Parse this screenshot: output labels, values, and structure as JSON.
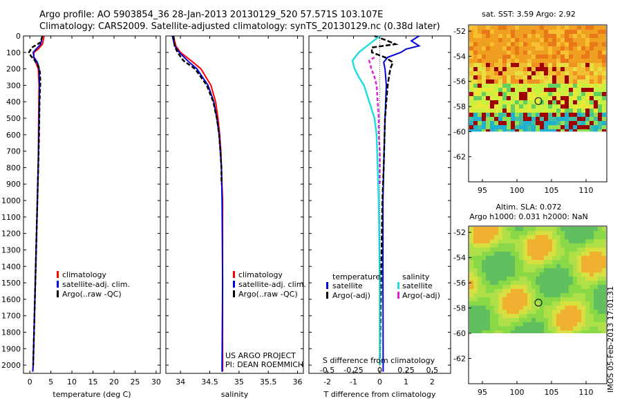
{
  "header": {
    "line1": "Argo profile: AO 5903854_36 28-Jan-2013 20130129_520 57.571S 103.107E",
    "line2": "Climatology: CARS2009. Satellite-adjusted climatology: synTS_20130129.nc (0.38d later)"
  },
  "colors": {
    "climatology": "#ff0000",
    "satellite": "#0000dd",
    "argo": "#000000",
    "satellite_s": "#22dddd",
    "argo_s": "#dd22dd"
  },
  "depth_axis": {
    "ticks": [
      "0",
      "100",
      "200",
      "300",
      "400",
      "500",
      "600",
      "700",
      "800",
      "900",
      "1000",
      "1100",
      "1200",
      "1300",
      "1400",
      "1500",
      "1600",
      "1700",
      "1800",
      "1900",
      "2000"
    ],
    "min": 0,
    "max": 2050
  },
  "chart_data": [
    {
      "type": "line",
      "name": "temperature-profile",
      "xlabel": "temperature (deg C)",
      "ylabel": "",
      "xlim": [
        -1.5,
        31
      ],
      "ylim": [
        2050,
        0
      ],
      "xticks": [
        "0",
        "5",
        "10",
        "15",
        "20",
        "25",
        "30"
      ],
      "legend": [
        "climatology",
        "satellite-adj. clim.",
        "Argo(..raw -QC)"
      ],
      "series": [
        {
          "name": "climatology",
          "depth": [
            0,
            50,
            80,
            100,
            130,
            160,
            200,
            300,
            500,
            800,
            1000,
            1500,
            2000,
            2040
          ],
          "values": [
            3.4,
            3.0,
            2.0,
            1.0,
            0.9,
            1.4,
            2.0,
            2.2,
            2.1,
            2.0,
            1.8,
            1.3,
            0.8,
            0.7
          ]
        },
        {
          "name": "satellite-adj. clim.",
          "depth": [
            0,
            50,
            80,
            100,
            130,
            160,
            200,
            300,
            500,
            800,
            1000,
            1500,
            2000,
            2040
          ],
          "values": [
            3.0,
            2.6,
            1.5,
            0.8,
            1.0,
            1.8,
            2.2,
            2.3,
            2.2,
            2.0,
            1.8,
            1.3,
            0.8,
            0.7
          ]
        },
        {
          "name": "Argo(..raw -QC)",
          "depth": [
            0,
            40,
            70,
            100,
            120,
            150,
            180,
            220,
            280,
            400,
            600,
            800,
            1000,
            1500,
            2000
          ],
          "values": [
            3.0,
            2.5,
            0.5,
            -0.2,
            0.2,
            1.2,
            2.0,
            2.4,
            2.5,
            2.3,
            2.2,
            2.0,
            1.8,
            1.3,
            0.8
          ]
        }
      ]
    },
    {
      "type": "line",
      "name": "salinity-profile",
      "xlabel": "salinity",
      "ylabel": "",
      "xlim": [
        33.75,
        36.1
      ],
      "ylim": [
        2050,
        0
      ],
      "xticks": [
        "34",
        "34.5",
        "35",
        "35.5",
        "36"
      ],
      "legend": [
        "climatology",
        "satellite-adj. clim.",
        "Argo(..raw -QC)"
      ],
      "annotation": [
        "US ARGO PROJECT",
        "PI: DEAN ROEMMICH"
      ],
      "series": [
        {
          "name": "climatology",
          "depth": [
            0,
            60,
            100,
            150,
            200,
            300,
            400,
            500,
            600,
            700,
            800,
            1000,
            1500,
            2000,
            2040
          ],
          "values": [
            33.88,
            33.92,
            34.0,
            34.18,
            34.35,
            34.52,
            34.6,
            34.64,
            34.67,
            34.69,
            34.7,
            34.72,
            34.72,
            34.72,
            34.72
          ]
        },
        {
          "name": "satellite-adj. clim.",
          "depth": [
            0,
            60,
            100,
            150,
            200,
            300,
            400,
            500,
            600,
            700,
            800,
            1000,
            1500,
            2000,
            2040
          ],
          "values": [
            33.86,
            33.9,
            33.98,
            34.12,
            34.28,
            34.47,
            34.57,
            34.62,
            34.66,
            34.68,
            34.7,
            34.71,
            34.72,
            34.71,
            34.71
          ]
        },
        {
          "name": "Argo(..raw -QC)",
          "depth": [
            0,
            60,
            100,
            150,
            200,
            300,
            400,
            500,
            600,
            700,
            800,
            900
          ],
          "values": [
            33.88,
            33.9,
            33.95,
            34.05,
            34.25,
            34.45,
            34.56,
            34.62,
            34.66,
            34.68,
            34.7,
            34.7
          ]
        }
      ]
    },
    {
      "type": "line",
      "name": "difference-profile",
      "xlabel": "T difference from climatology",
      "x2label": "S difference from climatology",
      "ylabel": "",
      "xlim": [
        -2.7,
        2.7
      ],
      "ylim": [
        2050,
        0
      ],
      "xticks": [
        "-2",
        "-1",
        "0",
        "1",
        "2"
      ],
      "x2ticks": [
        "-0.5",
        "-0.25",
        "0",
        "0.25",
        "0.5"
      ],
      "legend_temperature": {
        "title": "temperature",
        "items": [
          "satellite",
          "Argo(-adj)"
        ]
      },
      "legend_salinity": {
        "title": "salinity",
        "items": [
          "satellite",
          "Argo(-adj)"
        ]
      },
      "series": [
        {
          "name": "temperature satellite",
          "depth": [
            0,
            30,
            60,
            80,
            100,
            130,
            160,
            200,
            300,
            500,
            800,
            1000,
            1500,
            2000,
            2040
          ],
          "values": [
            1.5,
            1.2,
            1.5,
            1.0,
            0.8,
            0.3,
            0.15,
            0.2,
            0.25,
            0.2,
            0.15,
            0.12,
            0.12,
            0.13,
            0.13
          ]
        },
        {
          "name": "temperature Argo(-adj)",
          "depth": [
            0,
            30,
            50,
            70,
            100,
            130,
            160,
            200,
            300,
            500,
            800,
            1000,
            1500,
            2000
          ],
          "values": [
            -0.2,
            0.3,
            0.6,
            -0.3,
            -0.3,
            0.2,
            0.5,
            0.4,
            0.3,
            0.2,
            0.15,
            0.1,
            0.05,
            0.0
          ]
        },
        {
          "name": "salinity satellite",
          "depth": [
            0,
            100,
            150,
            200,
            250,
            300,
            400,
            500,
            600,
            800,
            1000,
            1500,
            2000
          ],
          "values": [
            0.0,
            -0.2,
            -0.26,
            -0.24,
            -0.2,
            -0.15,
            -0.1,
            -0.05,
            -0.03,
            -0.02,
            -0.01,
            0.0,
            0.0
          ]
        },
        {
          "name": "salinity Argo(-adj)",
          "depth": [
            130,
            150,
            200,
            250,
            300,
            400,
            500,
            600,
            700,
            800,
            900
          ],
          "values": [
            -0.05,
            -0.1,
            -0.08,
            -0.05,
            -0.03,
            -0.02,
            -0.01,
            -0.01,
            0.0,
            0.0,
            0.0
          ]
        }
      ]
    }
  ],
  "sst_map": {
    "title": "sat. SST: 3.59 Argo: 2.92",
    "xticks": [
      "95",
      "100",
      "105",
      "110"
    ],
    "yticks": [
      "-52",
      "-54",
      "-56",
      "-58",
      "-60",
      "-62"
    ],
    "marker_lon": 103.107,
    "marker_lat": -57.571,
    "lon_range": [
      93,
      113
    ],
    "lat_range": [
      -64,
      -51.5
    ]
  },
  "sla_map": {
    "title_line1": "Altim. SLA: 0.072",
    "title_line2": "Argo h1000: 0.031 h2000: NaN",
    "xticks": [
      "95",
      "100",
      "105",
      "110"
    ],
    "yticks": [
      "-52",
      "-54",
      "-56",
      "-58",
      "-60",
      "-62"
    ],
    "marker_lon": 103.107,
    "marker_lat": -57.571,
    "lon_range": [
      93,
      113
    ],
    "lat_range": [
      -64,
      -51.5
    ]
  },
  "side_label": "IMOS 05-Feb-2013 17:01:31"
}
